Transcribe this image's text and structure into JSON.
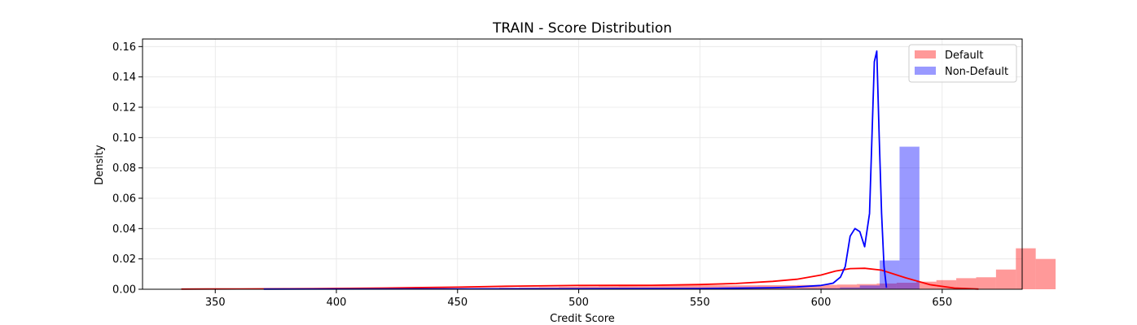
{
  "chart_data": {
    "type": "histogram",
    "title": "TRAIN - Score Distribution",
    "xlabel": "Credit Score",
    "ylabel": "Density",
    "xlim": [
      320,
      683
    ],
    "ylim": [
      0,
      0.165
    ],
    "xticks": [
      350,
      400,
      450,
      500,
      550,
      600,
      650
    ],
    "yticks": [
      0.0,
      0.02,
      0.04,
      0.06,
      0.08,
      0.1,
      0.12,
      0.14,
      0.16
    ],
    "grid": true,
    "legend": {
      "placement": "top-right",
      "entries": [
        "Default",
        "Non-Default"
      ]
    },
    "bin_width": 8.2,
    "series": [
      {
        "name": "Default",
        "color": "#ff0000",
        "bin_start": 336,
        "values": [
          0.0001,
          0.0001,
          0.0001,
          0.0001,
          0.0001,
          0.0001,
          0.0002,
          0.0002,
          0.0002,
          0.0003,
          0.0003,
          0.0004,
          0.0005,
          0.0006,
          0.0007,
          0.0008,
          0.001,
          0.0012,
          0.0014,
          0.0016,
          0.0018,
          0.002,
          0.0022,
          0.0024,
          0.0025,
          0.0026,
          0.0026,
          0.0026,
          0.0026,
          0.0027,
          0.0027,
          0.0028,
          0.0029,
          0.0031,
          0.0034,
          0.0038,
          0.0043,
          0.005,
          0.006,
          0.0073,
          0.0079,
          0.013,
          0.027,
          0.02
        ],
        "kde_x": [
          336,
          360,
          390,
          420,
          450,
          470,
          500,
          530,
          550,
          565,
          580,
          590,
          600,
          606,
          612,
          618,
          625,
          635,
          645,
          655,
          665
        ],
        "kde_y": [
          0.0001,
          0.0002,
          0.0004,
          0.0008,
          0.0014,
          0.002,
          0.0025,
          0.0026,
          0.0031,
          0.0038,
          0.0052,
          0.0066,
          0.0094,
          0.012,
          0.0136,
          0.0138,
          0.0126,
          0.0075,
          0.003,
          0.0008,
          0.0001
        ]
      },
      {
        "name": "Non-Default",
        "color": "#0000ff",
        "bin_start": 370,
        "values": [
          0.0001,
          0.0001,
          0.0001,
          0.0001,
          0.0001,
          0.0001,
          0.0001,
          0.0001,
          0.0001,
          0.0001,
          0.0001,
          0.0001,
          0.0001,
          0.0001,
          0.0001,
          0.0001,
          0.0001,
          0.0001,
          0.0001,
          0.0001,
          0.0001,
          0.0002,
          0.0002,
          0.0002,
          0.0002,
          0.0003,
          0.0004,
          0.0005,
          0.0007,
          0.0012,
          0.0025,
          0.019,
          0.094
        ],
        "kde_x": [
          370,
          450,
          500,
          550,
          580,
          590,
          600,
          605,
          608,
          610,
          612,
          614,
          616,
          618,
          620,
          622,
          623,
          624,
          625,
          626,
          627
        ],
        "kde_y": [
          0.0001,
          0.0002,
          0.0003,
          0.0005,
          0.001,
          0.0015,
          0.0025,
          0.004,
          0.008,
          0.015,
          0.035,
          0.04,
          0.038,
          0.028,
          0.05,
          0.15,
          0.157,
          0.1,
          0.05,
          0.015,
          0.001
        ]
      }
    ]
  }
}
